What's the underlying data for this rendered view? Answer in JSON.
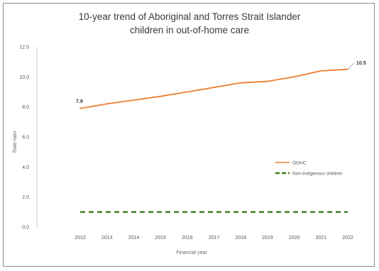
{
  "chart_data": {
    "type": "line",
    "title_line1": "10-year trend of Aboriginal and Torres Strait Islander",
    "title_line2": "children in out-of-home care",
    "xlabel": "Financial year",
    "ylabel": "Rate ratio",
    "x": [
      "2012",
      "2013",
      "2014",
      "2015",
      "2016",
      "2017",
      "2018",
      "2019",
      "2020",
      "2021",
      "2022"
    ],
    "ylim": [
      0,
      12
    ],
    "yticks": [
      "0.0",
      "2.0",
      "4.0",
      "6.0",
      "8.0",
      "10.0",
      "12.0"
    ],
    "grid": false,
    "legend_position": "right",
    "series": [
      {
        "name": "OOHC",
        "color": "#ED7D31",
        "style": "solid",
        "values": [
          7.9,
          8.2,
          8.45,
          8.7,
          9.0,
          9.3,
          9.6,
          9.7,
          10.0,
          10.4,
          10.5
        ],
        "labels": [
          {
            "index": 0,
            "text": "7.9"
          },
          {
            "index": 10,
            "text": "10.5"
          }
        ]
      },
      {
        "name": "Non-Indigenous children",
        "color": "#3A7D22",
        "style": "dashed",
        "values": [
          1.0,
          1.0,
          1.0,
          1.0,
          1.0,
          1.0,
          1.0,
          1.0,
          1.0,
          1.0,
          1.0
        ]
      }
    ]
  }
}
